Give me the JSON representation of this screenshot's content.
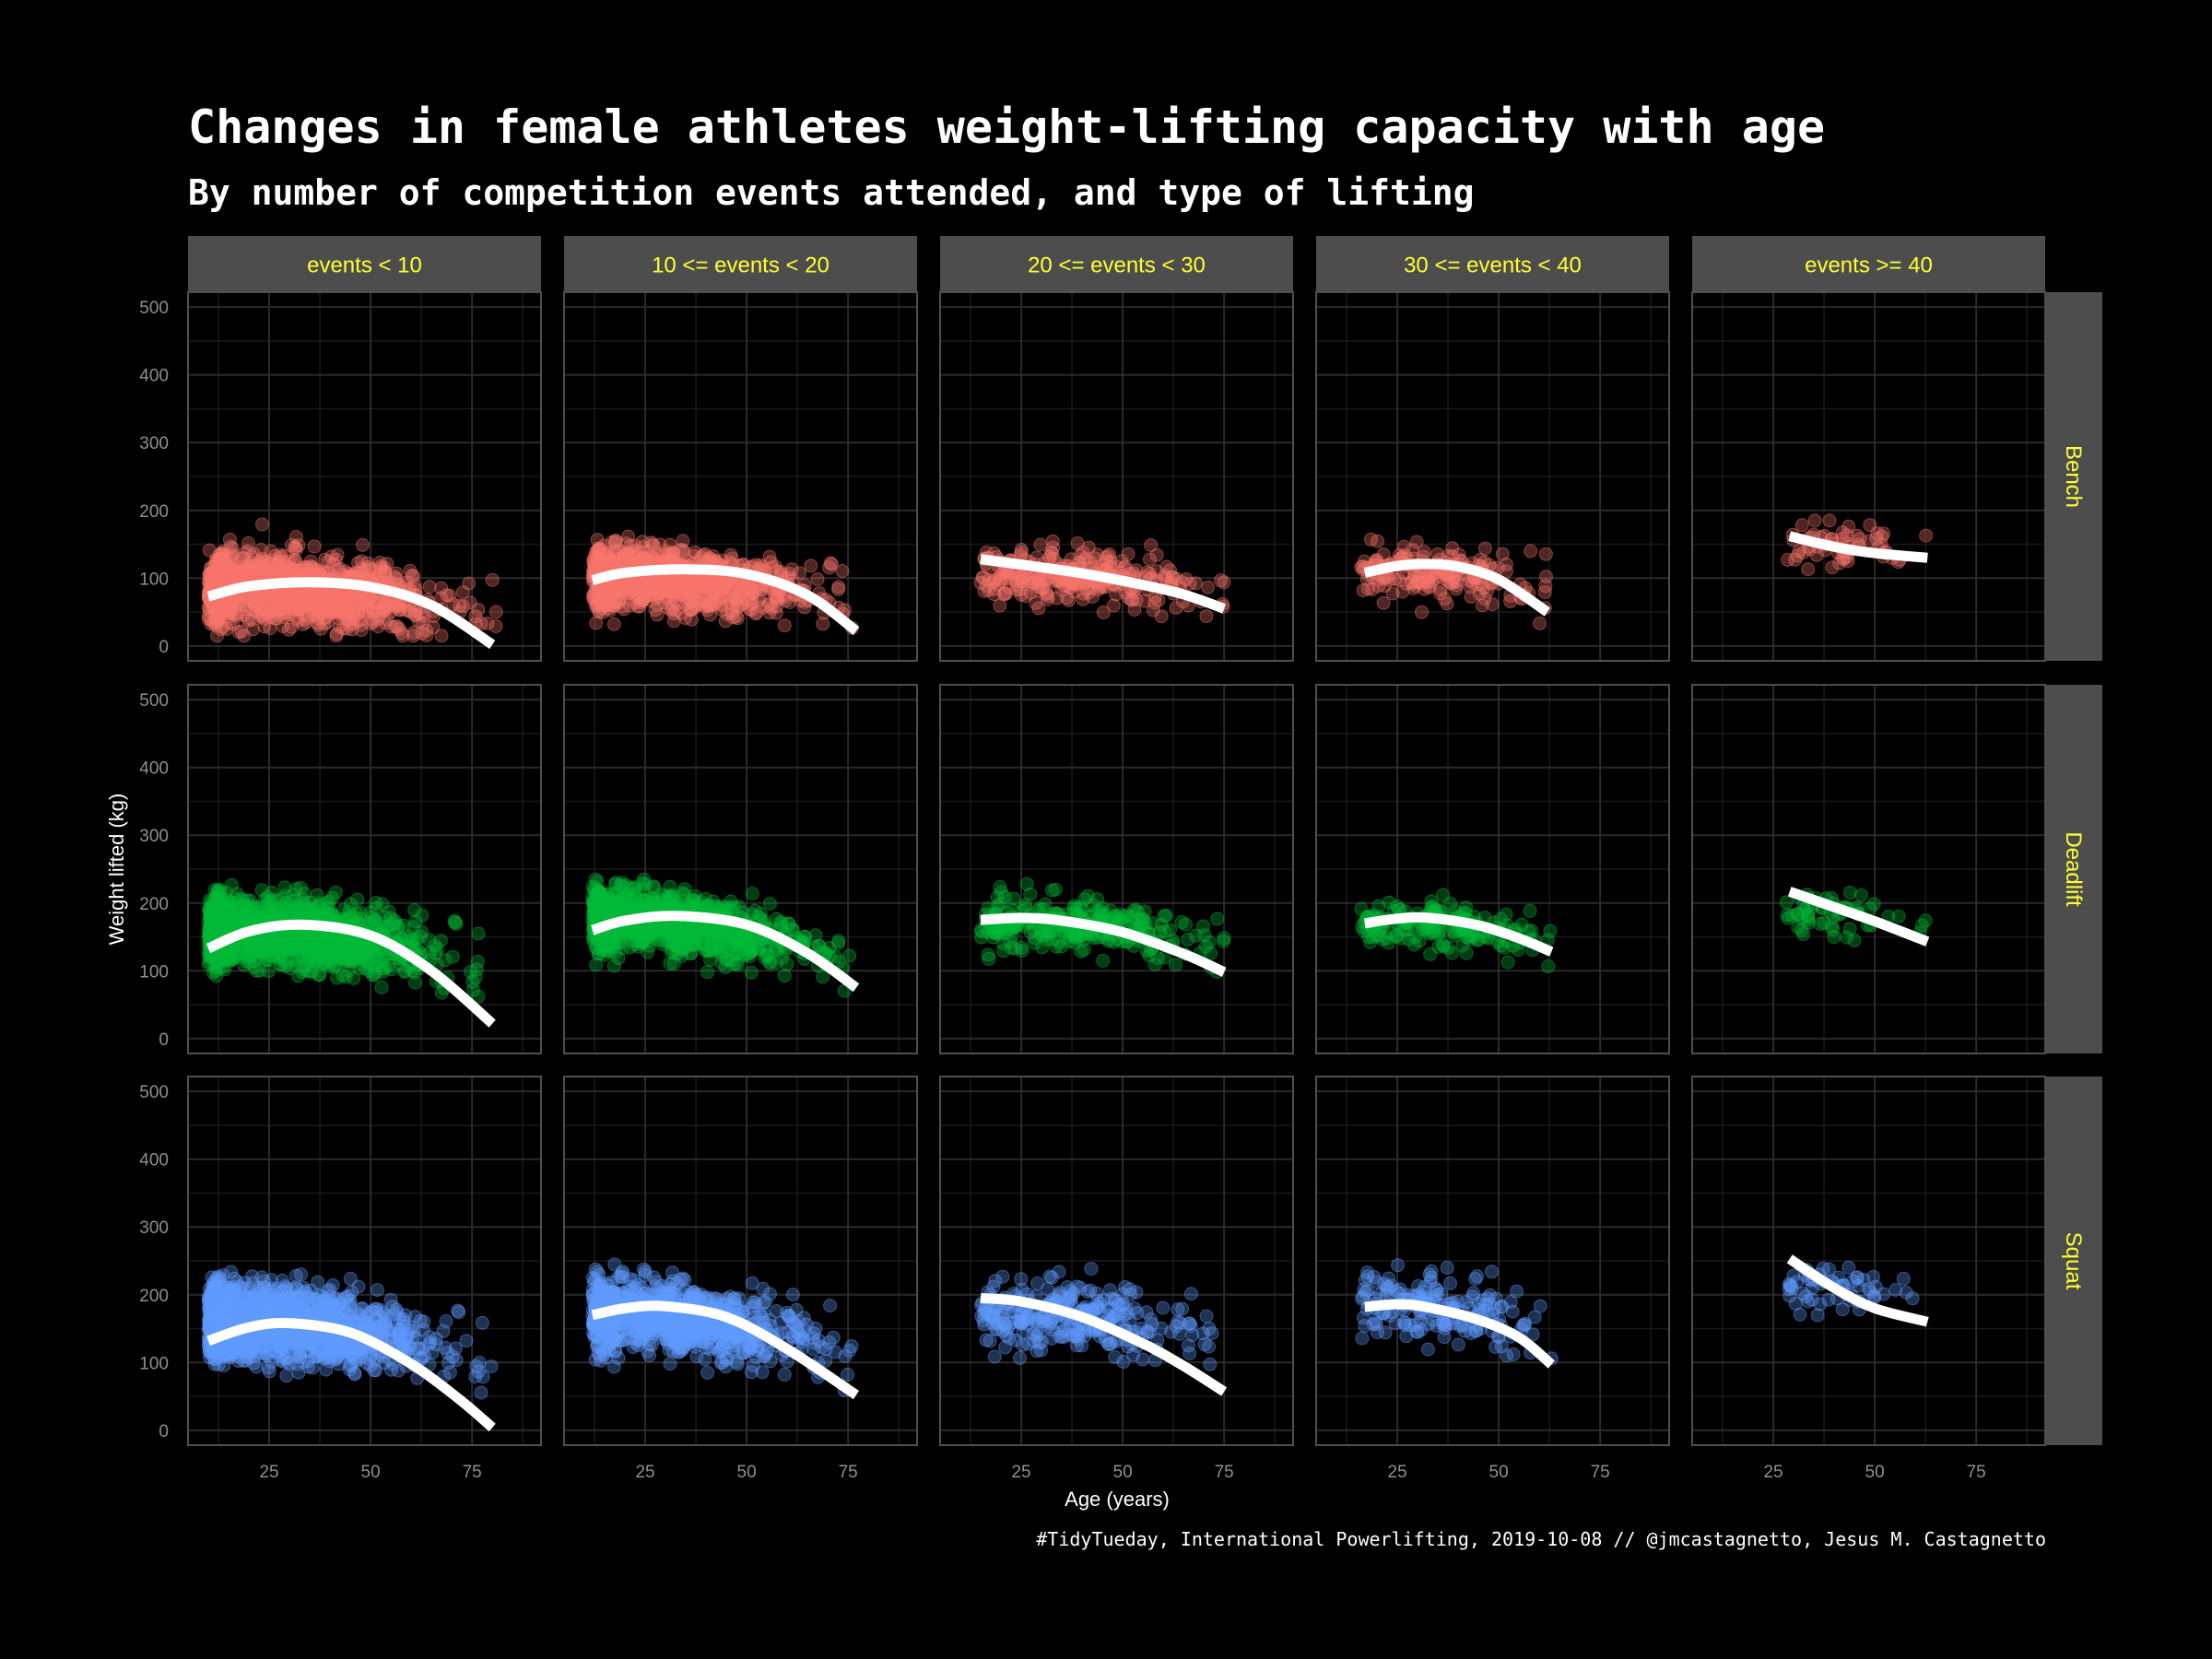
{
  "title": "Changes in female athletes weight-lifting capacity with age",
  "subtitle": "By number of competition events attended, and type of lifting",
  "caption": "#TidyTueday, International Powerlifting, 2019-10-08 // @jmcastagnetto, Jesus M. Castagnetto",
  "chart_data": {
    "type": "scatter",
    "xlabel": "Age (years)",
    "ylabel": "Weight lifted (kg)",
    "xlim": [
      5,
      92
    ],
    "ylim": [
      -22,
      522
    ],
    "xticks": [
      25,
      50,
      75
    ],
    "yticks": [
      0,
      100,
      200,
      300,
      400,
      500
    ],
    "grid": true,
    "columns": [
      "events < 10",
      "10 <= events < 20",
      "20 <= events < 30",
      "30 <= events < 40",
      "events >= 40"
    ],
    "rows": [
      "Bench",
      "Deadlift",
      "Squat"
    ],
    "colors": {
      "Bench": "#f8766d",
      "Deadlift": "#00ba38",
      "Squat": "#619cff",
      "smooth": "#ffffff",
      "strip_bg": "#4d4d4d",
      "strip_text": "#ffff33",
      "grid": "#2b2b2b",
      "panel_border": "#4f4f4f"
    },
    "panels": {
      "Bench": [
        {
          "cloud": [
            10,
            82
          ],
          "peak": 27,
          "yc": 85,
          "spread": 45,
          "ymax": 205,
          "trend": [
            [
              10,
              73
            ],
            [
              20,
              88
            ],
            [
              35,
              94
            ],
            [
              50,
              87
            ],
            [
              65,
              60
            ],
            [
              80,
              2
            ]
          ]
        },
        {
          "cloud": [
            12,
            77
          ],
          "peak": 30,
          "yc": 100,
          "spread": 40,
          "ymax": 235,
          "trend": [
            [
              12,
              97
            ],
            [
              20,
              108
            ],
            [
              35,
              113
            ],
            [
              50,
              106
            ],
            [
              65,
              75
            ],
            [
              77,
              22
            ]
          ]
        },
        {
          "cloud": [
            15,
            75
          ],
          "peak": 40,
          "yc": 105,
          "spread": 35,
          "ymax": 195,
          "trend": [
            [
              15,
              128
            ],
            [
              25,
              120
            ],
            [
              40,
              107
            ],
            [
              55,
              90
            ],
            [
              65,
              76
            ],
            [
              75,
              55
            ]
          ]
        },
        {
          "cloud": [
            16,
            63
          ],
          "peak": 35,
          "yc": 110,
          "spread": 40,
          "ymax": 205,
          "trend": [
            [
              17,
              108
            ],
            [
              25,
              118
            ],
            [
              32,
              121
            ],
            [
              40,
              117
            ],
            [
              50,
              98
            ],
            [
              62,
              50
            ]
          ]
        },
        {
          "cloud": [
            28,
            63
          ],
          "peak": 42,
          "yc": 145,
          "spread": 30,
          "ymax": 185,
          "trend": [
            [
              29,
              162
            ],
            [
              35,
              153
            ],
            [
              42,
              144
            ],
            [
              50,
              137
            ],
            [
              63,
              130
            ]
          ]
        }
      ],
      "Deadlift": [
        {
          "cloud": [
            10,
            80
          ],
          "peak": 27,
          "yc": 160,
          "spread": 45,
          "ymax": 265,
          "trend": [
            [
              10,
              133
            ],
            [
              20,
              158
            ],
            [
              33,
              168
            ],
            [
              50,
              152
            ],
            [
              65,
              100
            ],
            [
              80,
              22
            ]
          ]
        },
        {
          "cloud": [
            12,
            77
          ],
          "peak": 30,
          "yc": 175,
          "spread": 40,
          "ymax": 250,
          "trend": [
            [
              12,
              160
            ],
            [
              20,
              174
            ],
            [
              33,
              181
            ],
            [
              50,
              168
            ],
            [
              65,
              126
            ],
            [
              77,
              75
            ]
          ]
        },
        {
          "cloud": [
            15,
            75
          ],
          "peak": 38,
          "yc": 170,
          "spread": 35,
          "ymax": 245,
          "trend": [
            [
              15,
              175
            ],
            [
              25,
              178
            ],
            [
              35,
              174
            ],
            [
              50,
              157
            ],
            [
              65,
              125
            ],
            [
              75,
              98
            ]
          ]
        },
        {
          "cloud": [
            16,
            63
          ],
          "peak": 35,
          "yc": 170,
          "spread": 30,
          "ymax": 230,
          "trend": [
            [
              17,
              170
            ],
            [
              25,
              177
            ],
            [
              33,
              178
            ],
            [
              45,
              167
            ],
            [
              55,
              148
            ],
            [
              63,
              128
            ]
          ]
        },
        {
          "cloud": [
            28,
            63
          ],
          "peak": 40,
          "yc": 190,
          "spread": 30,
          "ymax": 230,
          "trend": [
            [
              29,
              217
            ],
            [
              40,
              194
            ],
            [
              50,
              173
            ],
            [
              63,
              143
            ]
          ]
        }
      ],
      "Squat": [
        {
          "cloud": [
            10,
            81
          ],
          "peak": 27,
          "yc": 160,
          "spread": 50,
          "ymax": 320,
          "trend": [
            [
              10,
              132
            ],
            [
              20,
              152
            ],
            [
              30,
              158
            ],
            [
              45,
              144
            ],
            [
              60,
              98
            ],
            [
              72,
              45
            ],
            [
              80,
              4
            ]
          ]
        },
        {
          "cloud": [
            12,
            77
          ],
          "peak": 30,
          "yc": 170,
          "spread": 45,
          "ymax": 320,
          "trend": [
            [
              12,
              170
            ],
            [
              20,
              180
            ],
            [
              30,
              183
            ],
            [
              45,
              167
            ],
            [
              60,
              120
            ],
            [
              77,
              52
            ]
          ]
        },
        {
          "cloud": [
            15,
            75
          ],
          "peak": 38,
          "yc": 170,
          "spread": 45,
          "ymax": 265,
          "trend": [
            [
              15,
              195
            ],
            [
              25,
              190
            ],
            [
              40,
              167
            ],
            [
              55,
              128
            ],
            [
              65,
              95
            ],
            [
              75,
              57
            ]
          ]
        },
        {
          "cloud": [
            16,
            63
          ],
          "peak": 35,
          "yc": 185,
          "spread": 45,
          "ymax": 275,
          "trend": [
            [
              17,
              182
            ],
            [
              25,
              186
            ],
            [
              32,
              182
            ],
            [
              45,
              163
            ],
            [
              55,
              137
            ],
            [
              63,
              97
            ]
          ]
        },
        {
          "cloud": [
            28,
            63
          ],
          "peak": 40,
          "yc": 210,
          "spread": 35,
          "ymax": 265,
          "trend": [
            [
              29,
              253
            ],
            [
              40,
              210
            ],
            [
              50,
              180
            ],
            [
              63,
              160
            ]
          ]
        }
      ]
    }
  }
}
